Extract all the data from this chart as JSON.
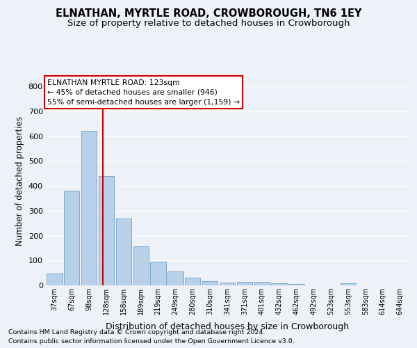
{
  "title": "ELNATHAN, MYRTLE ROAD, CROWBOROUGH, TN6 1EY",
  "subtitle": "Size of property relative to detached houses in Crowborough",
  "xlabel": "Distribution of detached houses by size in Crowborough",
  "ylabel": "Number of detached properties",
  "categories": [
    "37sqm",
    "67sqm",
    "98sqm",
    "128sqm",
    "158sqm",
    "189sqm",
    "219sqm",
    "249sqm",
    "280sqm",
    "310sqm",
    "341sqm",
    "371sqm",
    "401sqm",
    "432sqm",
    "462sqm",
    "492sqm",
    "523sqm",
    "553sqm",
    "583sqm",
    "614sqm",
    "644sqm"
  ],
  "values": [
    48,
    382,
    622,
    440,
    268,
    157,
    96,
    55,
    30,
    18,
    11,
    13,
    15,
    8,
    5,
    0,
    0,
    8,
    0,
    0,
    0
  ],
  "bar_color": "#b8d0e8",
  "bar_edgecolor": "#6a9fc8",
  "vline_color": "#cc0000",
  "annotation_title": "ELNATHAN MYRTLE ROAD: 123sqm",
  "annotation_line1": "← 45% of detached houses are smaller (946)",
  "annotation_line2": "55% of semi-detached houses are larger (1,159) →",
  "annotation_box_facecolor": "#ffffff",
  "annotation_box_edgecolor": "#cc0000",
  "ylim": [
    0,
    840
  ],
  "yticks": [
    0,
    100,
    200,
    300,
    400,
    500,
    600,
    700,
    800
  ],
  "footnote1": "Contains HM Land Registry data © Crown copyright and database right 2024.",
  "footnote2": "Contains public sector information licensed under the Open Government Licence v3.0.",
  "bg_color": "#eef2f8",
  "grid_color": "#ffffff",
  "title_fontsize": 10.5,
  "subtitle_fontsize": 9.5
}
